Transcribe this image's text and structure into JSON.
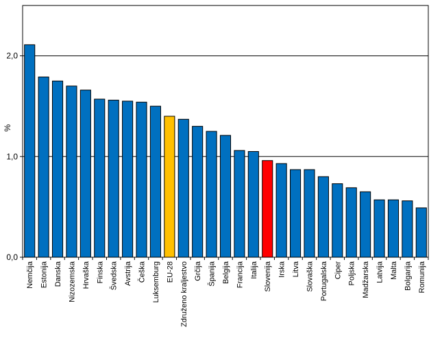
{
  "chart_data": {
    "type": "bar",
    "title": "",
    "xlabel": "",
    "ylabel": "%",
    "ylim": [
      0,
      2.5
    ],
    "yticks": [
      {
        "value": 0,
        "label": "0,0"
      },
      {
        "value": 1,
        "label": "1,0"
      },
      {
        "value": 2,
        "label": "2,0"
      }
    ],
    "grid": true,
    "legend": "none",
    "categories": [
      "Nemčija",
      "Estonija",
      "Danska",
      "Nizozemska",
      "Hrvaška",
      "Finska",
      "Švedska",
      "Avstrija",
      "Češka",
      "Luksemburg",
      "EU-28",
      "Združeno kraljestvo",
      "Grčija",
      "Španija",
      "Belgija",
      "Francija",
      "Italija",
      "Slovenija",
      "Irska",
      "Litva",
      "Slovaška",
      "Portugalska",
      "Ciper",
      "Poljska",
      "Madžarska",
      "Latvija",
      "Malta",
      "Bolgarija",
      "Romunija"
    ],
    "values": [
      2.11,
      1.79,
      1.75,
      1.7,
      1.66,
      1.57,
      1.56,
      1.55,
      1.54,
      1.5,
      1.4,
      1.37,
      1.3,
      1.25,
      1.21,
      1.06,
      1.05,
      0.96,
      0.93,
      0.87,
      0.87,
      0.8,
      0.73,
      0.69,
      0.65,
      0.57,
      0.57,
      0.56,
      0.49
    ],
    "colors": {
      "default": "#0070C0",
      "highlight_eu": "#FFC000",
      "highlight_slovenia": "#FF0000",
      "outline": "#000000"
    },
    "highlight": {
      "EU-28": "highlight_eu",
      "Slovenija": "highlight_slovenia"
    }
  }
}
